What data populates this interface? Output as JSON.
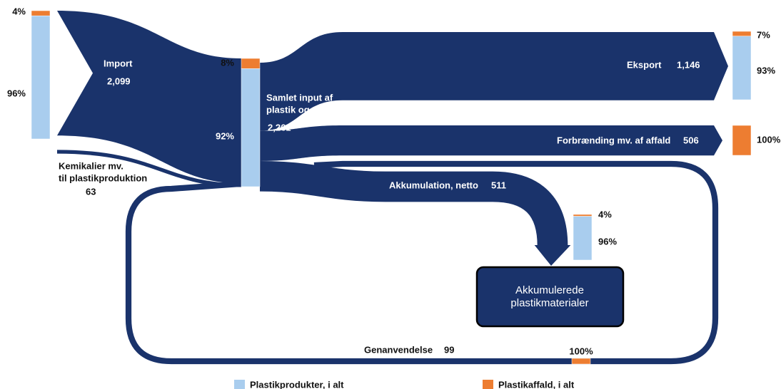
{
  "flows": {
    "import": {
      "label": "Import",
      "value": 2099,
      "value_label": "2,099"
    },
    "chemicals": {
      "lines": [
        "Kemikalier mv.",
        "til plastikproduktion"
      ],
      "value": 63
    },
    "total": {
      "lines": [
        "Samlet input af",
        "plastik og råstoffer"
      ],
      "value": 2261,
      "value_label": "2,261"
    },
    "export": {
      "label": "Eksport",
      "value": 1146,
      "value_label": "1,146"
    },
    "incineration": {
      "label": "Forbrænding mv. af affald",
      "value": 506
    },
    "accumulation": {
      "label": "Akkumulation, netto",
      "value": 511
    },
    "recycling": {
      "label": "Genanvendelse",
      "value": 99
    }
  },
  "stock": {
    "lines": [
      "Akkumulerede",
      "plastikmaterialer"
    ]
  },
  "bars": [
    {
      "waste": {
        "value": 4,
        "label": "4%"
      },
      "products": {
        "value": 96,
        "label": "96%"
      }
    },
    {
      "waste": {
        "value": 8,
        "label": "8%"
      },
      "products": {
        "value": 92,
        "label": "92%"
      }
    },
    {
      "waste": {
        "value": 7,
        "label": "7%"
      },
      "products": {
        "value": 93,
        "label": "93%"
      }
    },
    {
      "waste": {
        "value": 100,
        "label": "100%"
      }
    },
    {
      "waste": {
        "value": 4,
        "label": "4%"
      },
      "products": {
        "value": 96,
        "label": "96%"
      }
    },
    {
      "waste": {
        "value": 100,
        "label": "100%"
      }
    }
  ],
  "legend": {
    "products": {
      "label": "Plastikprodukter, i alt",
      "color": "#a9cdee"
    },
    "waste": {
      "label": "Plastikaffald, i alt",
      "color": "#ed7d31"
    }
  }
}
